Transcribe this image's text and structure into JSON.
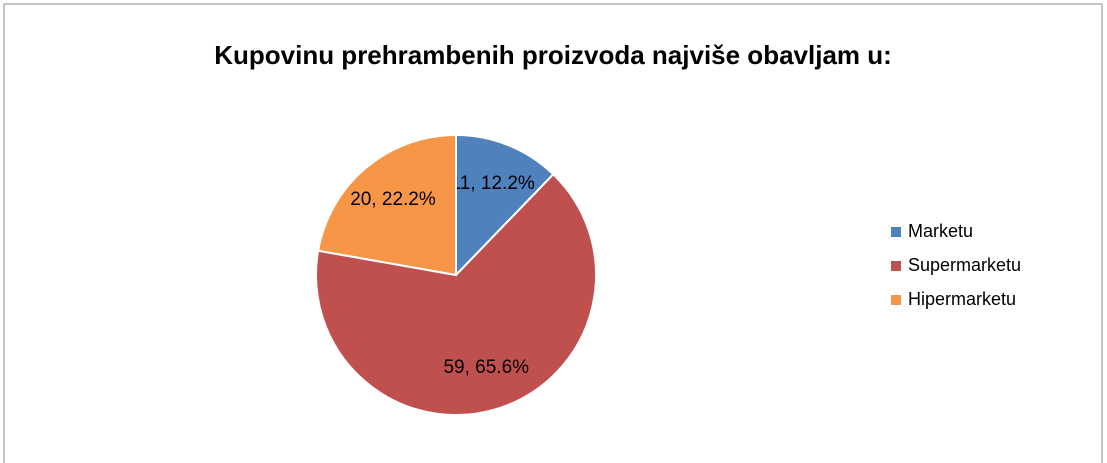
{
  "chart_data": {
    "type": "pie",
    "title": "Kupovinu prehrambenih proizvoda najviše obavljam u:",
    "categories": [
      "Marketu",
      "Supermarketu",
      "Hipermarketu"
    ],
    "values": [
      11,
      59,
      20
    ],
    "value_labels": [
      "11, 12.2%",
      "59, 65.6%",
      "20, 22.2%"
    ],
    "colors": [
      "#4f81bd",
      "#c0504d",
      "#f79646"
    ],
    "legend": "right"
  }
}
